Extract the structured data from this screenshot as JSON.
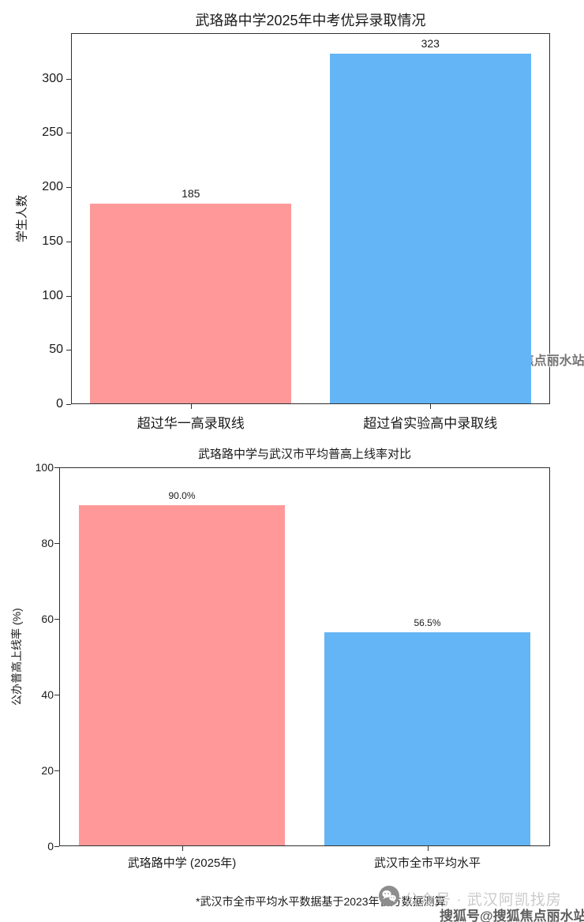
{
  "page": {
    "background": "#ffffff"
  },
  "chart_data": [
    {
      "type": "bar",
      "title": "武珞路中学2025年中考优异录取情况",
      "categories": [
        "超过华一高录取线",
        "超过省实验高中录取线"
      ],
      "values": [
        185,
        323
      ],
      "value_labels": [
        "185",
        "323"
      ],
      "bar_colors": [
        "#FF9999",
        "#64B5F6"
      ],
      "xlabel": "",
      "ylabel": "学生人数",
      "yticks": [
        0,
        50,
        100,
        150,
        200,
        250,
        300
      ],
      "ylim": [
        0,
        342
      ],
      "grid": false,
      "legend_position": "none"
    },
    {
      "type": "bar",
      "title": "武珞路中学与武汉市平均普高上线率对比",
      "categories": [
        "武珞路中学 (2025年)",
        "武汉市全市平均水平"
      ],
      "values": [
        90.0,
        56.5
      ],
      "value_labels": [
        "90.0%",
        "56.5%"
      ],
      "bar_colors": [
        "#FF9999",
        "#64B5F6"
      ],
      "xlabel": "",
      "ylabel": "公办普高上线率 (%)",
      "yticks": [
        0,
        20,
        40,
        60,
        80,
        100
      ],
      "ylim": [
        0,
        100
      ],
      "grid": false,
      "legend_position": "none"
    }
  ],
  "footnote": "*武汉市全市平均水平数据基于2023年官方数据测算",
  "watermarks": {
    "mid_right": "搜狐号@搜狐焦点丽水站",
    "bottom_center": "公众号 · 武汉阿凯找房",
    "bottom_right": "搜狐号@搜狐焦点丽水站",
    "icon": "wechat-icon"
  },
  "colors": {
    "bar_pink": "#FF9999",
    "bar_blue": "#64B5F6",
    "axis": "#2f2f2f",
    "text": "#1a1a1a",
    "watermark_light": "#cacaca",
    "watermark_dark": "#5f5f5f"
  }
}
